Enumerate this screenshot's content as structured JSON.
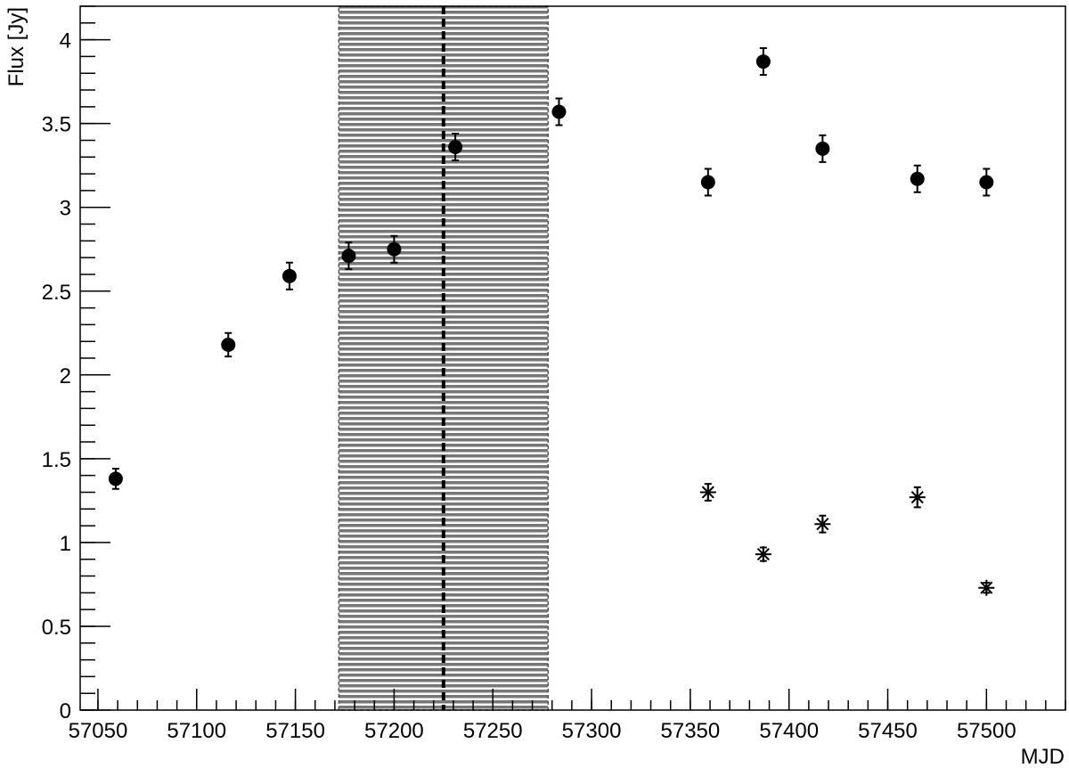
{
  "chart_data": {
    "type": "scatter",
    "x_label": "MJD",
    "y_label": "Flux [Jy]",
    "xlim": [
      57041,
      57540
    ],
    "ylim": [
      0,
      4.2
    ],
    "xticks": [
      57050,
      57100,
      57150,
      57200,
      57250,
      57300,
      57350,
      57400,
      57450,
      57500
    ],
    "yticks": [
      0,
      0.5,
      1,
      1.5,
      2,
      2.5,
      3,
      3.5,
      4
    ],
    "shaded_region": [
      57172,
      57278
    ],
    "vline": 57225,
    "series": [
      {
        "marker": "circle",
        "color": "#000000",
        "x": [
          57059,
          57116,
          57147,
          57177,
          57200,
          57231,
          57283.5,
          57359,
          57387,
          57417,
          57465,
          57500
        ],
        "values": [
          1.38,
          2.18,
          2.59,
          2.71,
          2.75,
          3.36,
          3.57,
          3.15,
          3.87,
          3.35,
          3.17,
          3.15
        ],
        "errors": [
          0.06,
          0.07,
          0.08,
          0.08,
          0.08,
          0.08,
          0.08,
          0.08,
          0.08,
          0.08,
          0.08,
          0.08
        ]
      },
      {
        "marker": "star",
        "color": "#000000",
        "x": [
          57359,
          57387,
          57417,
          57465,
          57500
        ],
        "values": [
          1.3,
          0.93,
          1.11,
          1.27,
          0.73
        ],
        "errors": [
          0.05,
          0.04,
          0.05,
          0.06,
          0.03
        ]
      }
    ]
  }
}
